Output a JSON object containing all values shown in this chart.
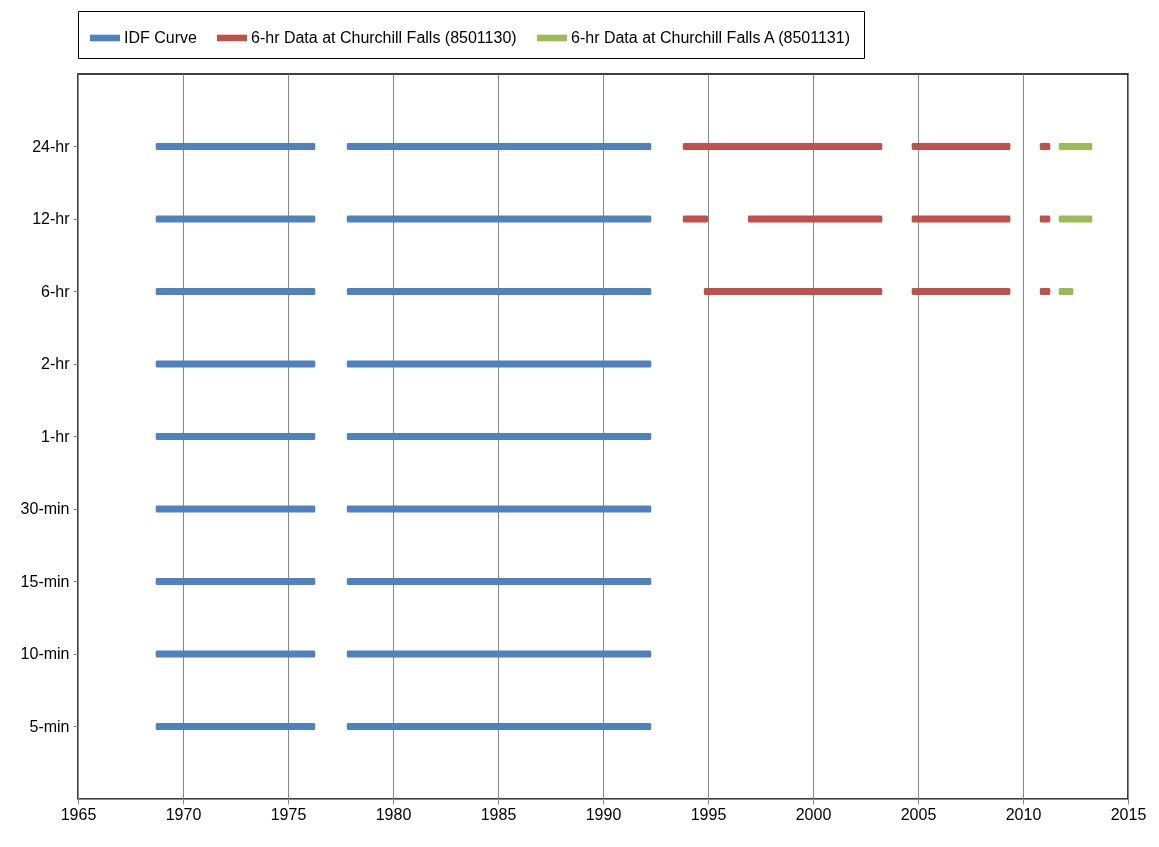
{
  "chart_data": {
    "type": "bar",
    "orientation": "horizontal",
    "categories": [
      "24-hr",
      "12-hr",
      "6-hr",
      "2-hr",
      "1-hr",
      "30-min",
      "15-min",
      "10-min",
      "5-min"
    ],
    "xlim": [
      1965,
      2015
    ],
    "xticks": [
      1965,
      1970,
      1975,
      1980,
      1985,
      1990,
      1995,
      2000,
      2005,
      2010,
      2015
    ],
    "grid": "x",
    "legend": "top",
    "series": [
      {
        "name": "IDF Curve",
        "color": "#4f81bd",
        "base": [
          1968.7,
          1968.7,
          1968.7,
          1968.7,
          1968.7,
          1968.7,
          1968.7,
          1968.7,
          1968.7
        ],
        "values": [
          7.6,
          7.6,
          7.6,
          7.6,
          7.6,
          7.6,
          7.6,
          7.6,
          7.6
        ]
      },
      {
        "color": "#4f81bd",
        "base": [
          1977.8,
          1977.8,
          1977.8,
          1977.8,
          1977.8,
          1977.8,
          1977.8,
          1977.8,
          1977.8
        ],
        "values": [
          14.5,
          14.5,
          14.5,
          14.5,
          14.5,
          14.5,
          14.5,
          14.5,
          14.5
        ]
      },
      {
        "name": "6-hr Data at Churchill Falls (8501130)",
        "color": "#c0504d",
        "base": [
          1993.8,
          1993.8,
          1994.8,
          null,
          null,
          null,
          null,
          null,
          null
        ],
        "values": [
          9.5,
          1.2,
          8.5,
          null,
          null,
          null,
          null,
          null,
          null
        ]
      },
      {
        "color": "#c0504d",
        "base": [
          2004.7,
          1996.9,
          2004.7,
          null,
          null,
          null,
          null,
          null,
          null
        ],
        "values": [
          4.7,
          6.4,
          4.7,
          null,
          null,
          null,
          null,
          null,
          null
        ]
      },
      {
        "color": "#c0504d",
        "base": [
          2010.8,
          2004.7,
          2010.8,
          null,
          null,
          null,
          null,
          null,
          null
        ],
        "values": [
          0.5,
          4.7,
          0.5,
          null,
          null,
          null,
          null,
          null,
          null
        ]
      },
      {
        "color": "#c0504d",
        "base": [
          null,
          2010.8,
          null,
          null,
          null,
          null,
          null,
          null,
          null
        ],
        "values": [
          null,
          0.5,
          null,
          null,
          null,
          null,
          null,
          null,
          null
        ]
      },
      {
        "name": "6-hr Data at Churchill Falls A (8501131)",
        "color": "#9bbb59",
        "base": [
          2011.7,
          2011.7,
          2011.7,
          null,
          null,
          null,
          null,
          null,
          null
        ],
        "values": [
          1.6,
          1.6,
          0.7,
          null,
          null,
          null,
          null,
          null,
          null
        ]
      }
    ]
  }
}
